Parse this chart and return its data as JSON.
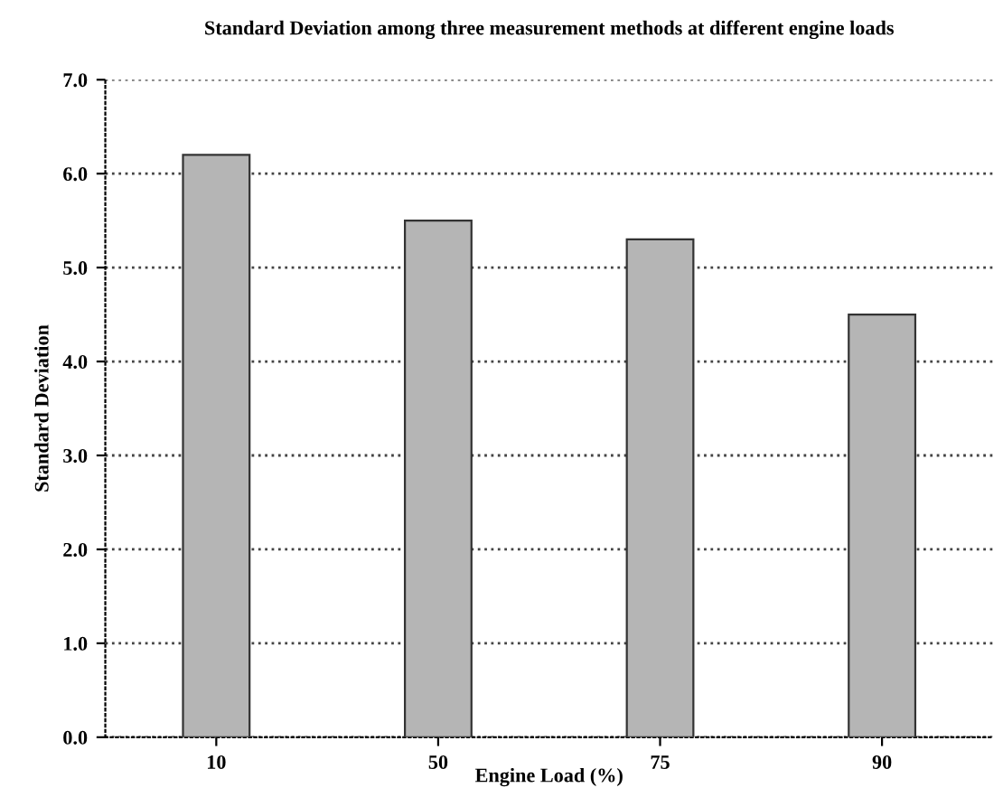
{
  "chart_data": {
    "type": "bar",
    "title": "Standard Deviation among three measurement methods at different engine loads",
    "xlabel": "Engine Load (%)",
    "ylabel": "Standard Deviation",
    "categories": [
      "10",
      "50",
      "75",
      "90"
    ],
    "values": [
      6.2,
      5.5,
      5.3,
      4.5
    ],
    "color": "#b5b5b5",
    "ylim": [
      0,
      7
    ],
    "yticks": [
      {
        "value": 0,
        "label": "0.0"
      },
      {
        "value": 1,
        "label": "1.0"
      },
      {
        "value": 2,
        "label": "2.0"
      },
      {
        "value": 3,
        "label": "3.0"
      },
      {
        "value": 4,
        "label": "4.0"
      },
      {
        "value": 5,
        "label": "5.0"
      },
      {
        "value": 6,
        "label": "6.0"
      },
      {
        "value": 7,
        "label": "7.0"
      }
    ],
    "grid": "y"
  }
}
